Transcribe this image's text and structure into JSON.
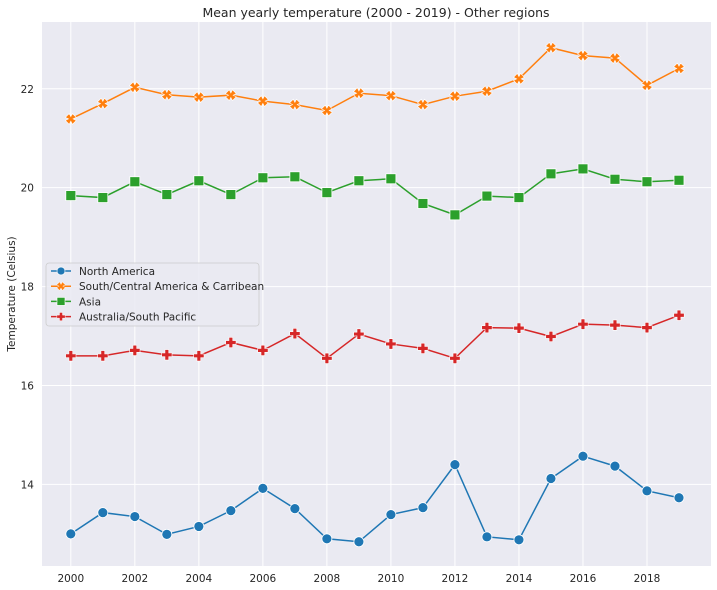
{
  "chart_data": {
    "type": "line",
    "title": "Mean yearly temperature (2000 - 2019) - Other regions",
    "xlabel": "",
    "ylabel": "Temperature (Celsius)",
    "xlim": [
      1999.1,
      2020.0
    ],
    "ylim": [
      12.35,
      23.35
    ],
    "x_ticks": [
      2000,
      2002,
      2004,
      2006,
      2008,
      2010,
      2012,
      2014,
      2016,
      2018
    ],
    "y_ticks": [
      14,
      16,
      18,
      20,
      22
    ],
    "grid": true,
    "legend_position": "center-left",
    "x": [
      2000,
      2001,
      2002,
      2003,
      2004,
      2005,
      2006,
      2007,
      2008,
      2009,
      2010,
      2011,
      2012,
      2013,
      2014,
      2015,
      2016,
      2017,
      2018,
      2019
    ],
    "series": [
      {
        "name": "North America",
        "color": "#1f77b4",
        "marker": "circle",
        "values": [
          13.0,
          13.43,
          13.35,
          12.99,
          13.15,
          13.47,
          13.92,
          13.51,
          12.9,
          12.84,
          13.39,
          13.53,
          14.4,
          12.94,
          12.88,
          14.12,
          14.57,
          14.37,
          13.87,
          13.73
        ]
      },
      {
        "name": "South/Central America & Carribean",
        "color": "#ff7f0e",
        "marker": "x",
        "values": [
          21.39,
          21.7,
          22.03,
          21.88,
          21.83,
          21.87,
          21.75,
          21.68,
          21.56,
          21.91,
          21.86,
          21.68,
          21.85,
          21.95,
          22.2,
          22.83,
          22.67,
          22.62,
          22.07,
          22.41
        ]
      },
      {
        "name": "Asia",
        "color": "#2ca02c",
        "marker": "square",
        "values": [
          19.84,
          19.8,
          20.12,
          19.86,
          20.14,
          19.86,
          20.2,
          20.22,
          19.9,
          20.14,
          20.18,
          19.68,
          19.45,
          19.83,
          19.8,
          20.28,
          20.38,
          20.17,
          20.12,
          20.15
        ]
      },
      {
        "name": "Australia/South Pacific",
        "color": "#d62728",
        "marker": "plus",
        "values": [
          16.6,
          16.6,
          16.71,
          16.62,
          16.6,
          16.87,
          16.71,
          17.05,
          16.55,
          17.04,
          16.84,
          16.75,
          16.55,
          17.17,
          17.16,
          16.99,
          17.24,
          17.22,
          17.17,
          17.42
        ]
      }
    ]
  }
}
